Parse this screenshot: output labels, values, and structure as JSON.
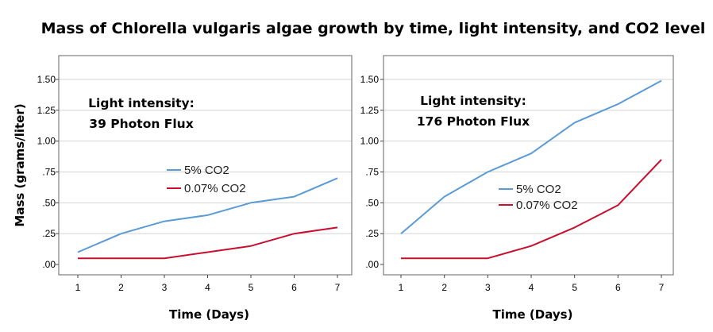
{
  "title": "Mass of Chlorella vulgaris algae growth by time, light intensity, and CO2 level",
  "ylabel": "Mass (grams/liter)",
  "y_tick_labels": [
    ".00",
    ".25",
    ".50",
    ".75",
    "1.00",
    "1.25",
    "1.50"
  ],
  "colors": {
    "co2_5": "#5b9bd5",
    "co2_007": "#c8102e"
  },
  "chart_data": [
    {
      "type": "line",
      "annotation": [
        "Light intensity:",
        "39 Photon Flux"
      ],
      "xlabel": "Time (Days)",
      "ylabel": "Mass (grams/liter)",
      "x": [
        1,
        2,
        3,
        4,
        5,
        6,
        7
      ],
      "ylim": [
        0,
        1.5
      ],
      "legend_position": "middle-left",
      "series": [
        {
          "name": "5% CO2",
          "values": [
            0.1,
            0.25,
            0.35,
            0.4,
            0.5,
            0.55,
            0.7
          ]
        },
        {
          "name": "0.07% CO2",
          "values": [
            0.05,
            0.05,
            0.05,
            0.1,
            0.15,
            0.25,
            0.3
          ]
        }
      ]
    },
    {
      "type": "line",
      "annotation": [
        "Light intensity:",
        "176 Photon Flux"
      ],
      "xlabel": "Time (Days)",
      "ylabel": "",
      "x": [
        1,
        2,
        3,
        4,
        5,
        6,
        7
      ],
      "ylim": [
        0,
        1.5
      ],
      "legend_position": "middle",
      "series": [
        {
          "name": "5% CO2",
          "values": [
            0.25,
            0.55,
            0.75,
            0.9,
            1.15,
            1.3,
            1.49
          ]
        },
        {
          "name": "0.07% CO2",
          "values": [
            0.05,
            0.05,
            0.05,
            0.15,
            0.3,
            0.48,
            0.85
          ]
        }
      ]
    }
  ]
}
